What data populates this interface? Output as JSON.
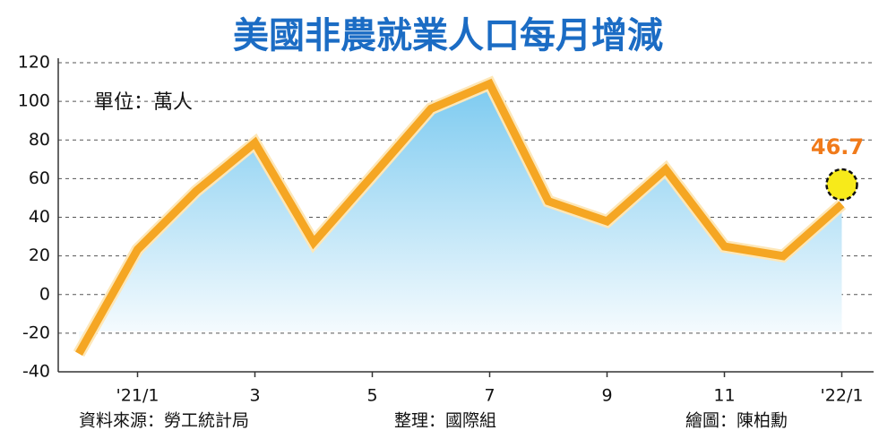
{
  "chart_data": {
    "type": "line",
    "title": "美國非農就業人口每月增減",
    "unit_label": "單位：萬人",
    "source": "資料來源：勞工統計局",
    "editor": "整理：國際組",
    "illustrator": "繪圖：陳柏勳",
    "categories": [
      null,
      "'21/1",
      null,
      "3",
      null,
      "5",
      null,
      "7",
      null,
      "9",
      null,
      "11",
      null,
      "'22/1"
    ],
    "series": [
      {
        "name": "非農就業人口每月增減",
        "color": "#f5a623",
        "area_color": "#7ccaf0",
        "values": [
          -30.6,
          23.3,
          53.6,
          78.5,
          26.9,
          61.4,
          96.2,
          109.1,
          48.3,
          37.9,
          64.8,
          24.9,
          19.9,
          46.7
        ]
      }
    ],
    "highlight_color": "#f7ea1a",
    "label_color": "#f07a1a",
    "title_color": "#1b6cc4",
    "ylim": [
      -40,
      120
    ],
    "yticks": [
      -40,
      -20,
      0,
      20,
      40,
      60,
      80,
      100,
      120
    ],
    "grid": true
  }
}
